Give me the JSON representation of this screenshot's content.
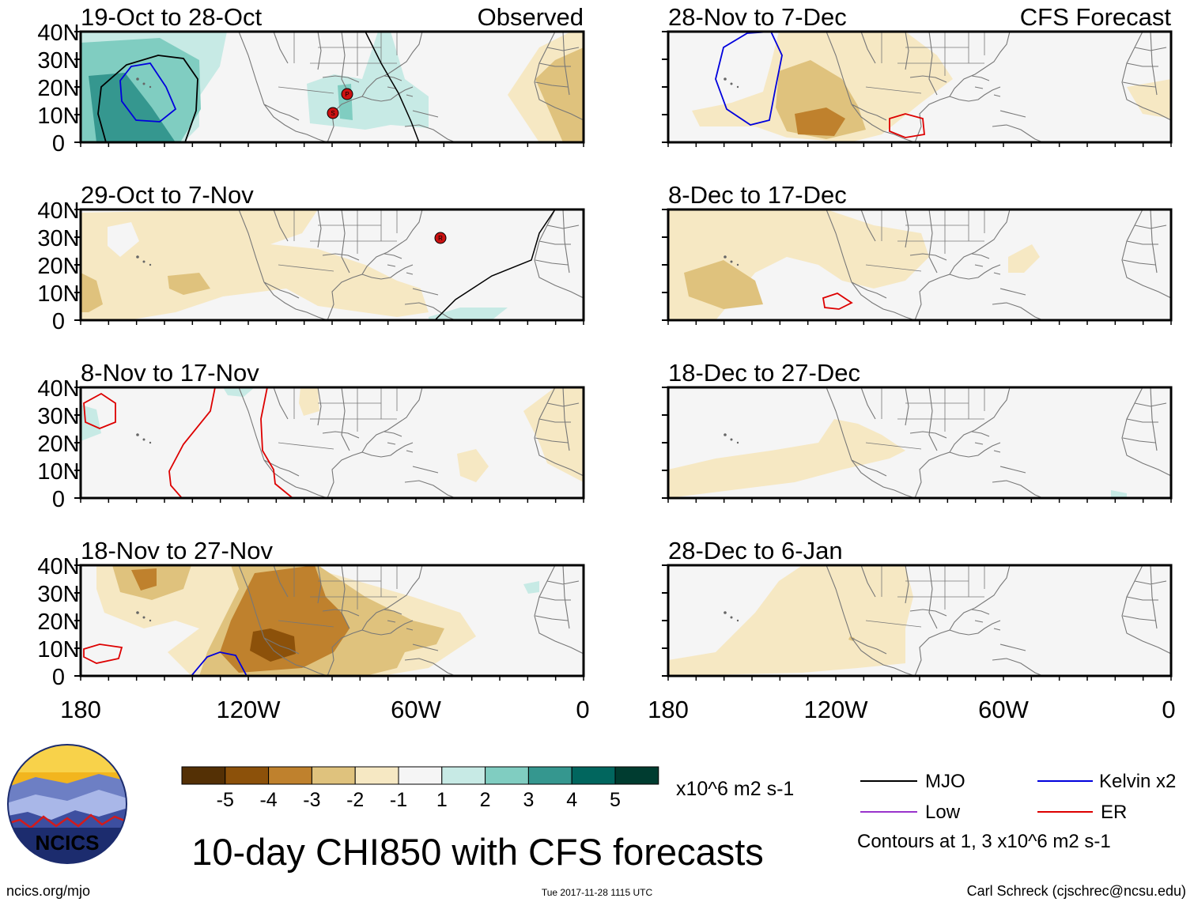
{
  "panels": [
    {
      "id": "p1",
      "period": "19-Oct to 28-Oct",
      "tag": "Observed"
    },
    {
      "id": "p2",
      "period": "29-Oct to 7-Nov",
      "tag": ""
    },
    {
      "id": "p3",
      "period": "8-Nov to 17-Nov",
      "tag": ""
    },
    {
      "id": "p4",
      "period": "18-Nov to 27-Nov",
      "tag": ""
    },
    {
      "id": "p5",
      "period": "28-Nov to 7-Dec",
      "tag": "CFS Forecast"
    },
    {
      "id": "p6",
      "period": "8-Dec to 17-Dec",
      "tag": ""
    },
    {
      "id": "p7",
      "period": "18-Dec to 27-Dec",
      "tag": ""
    },
    {
      "id": "p8",
      "period": "28-Dec to 6-Jan",
      "tag": ""
    }
  ],
  "lat_labels": [
    "40N",
    "30N",
    "20N",
    "10N",
    "0"
  ],
  "lon_labels": [
    "180",
    "120W",
    "60W",
    "0"
  ],
  "colorbar": {
    "unit": "x10^6 m2 s-1",
    "labels": [
      "-5",
      "-4",
      "-3",
      "-2",
      "-1",
      "1",
      "2",
      "3",
      "4",
      "5"
    ],
    "colors": [
      "#543005",
      "#8c510a",
      "#bf812d",
      "#dfc27d",
      "#f6e8c3",
      "#f5f5f5",
      "#c7eae5",
      "#80cdc1",
      "#35978f",
      "#01665e",
      "#003c30"
    ]
  },
  "legend": {
    "mjo": "MJO",
    "kelvin": "Kelvin x2",
    "low": "Low",
    "er": "ER",
    "contours_note": "Contours at 1, 3 x10^6 m2 s-1",
    "colors": {
      "mjo": "#000000",
      "kelvin": "#0000dd",
      "low": "#9933cc",
      "er": "#dd0000"
    }
  },
  "storm_markers": [
    "S",
    "P",
    "R"
  ],
  "logo_text": "NCICS",
  "title": "10-day CHI850 with CFS forecasts",
  "footer": {
    "url": "ncics.org/mjo",
    "timestamp": "Tue 2017-11-28 1115 UTC",
    "credit": "Carl Schreck (cjschrec@ncsu.edu)"
  }
}
